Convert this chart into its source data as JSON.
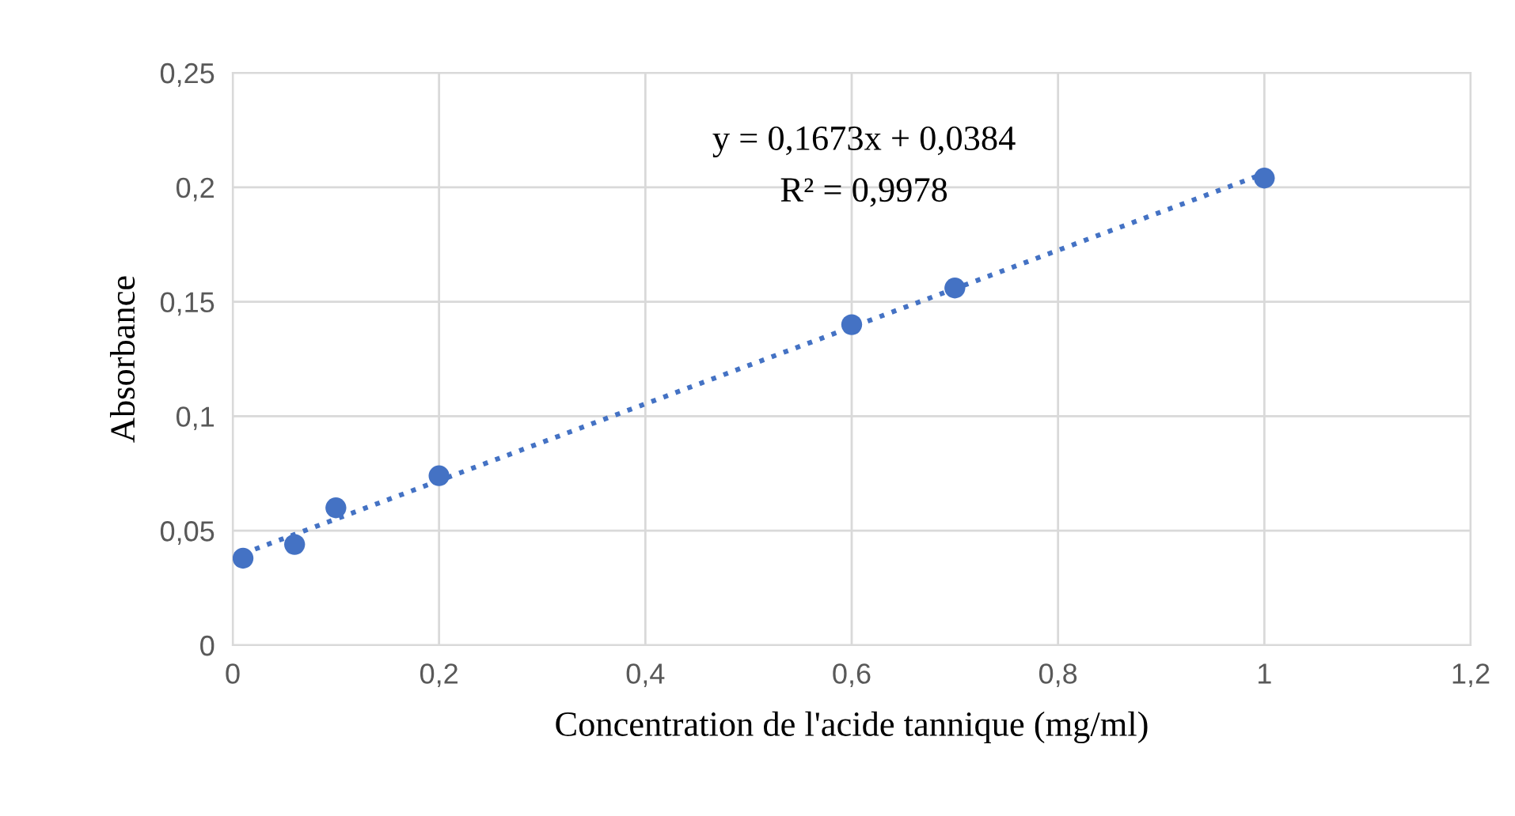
{
  "chart_data": {
    "type": "scatter",
    "xlabel": "Concentration de l'acide tannique (mg/ml)",
    "ylabel": "Absorbance",
    "annotations": [
      "y = 0,1673x + 0,0384",
      "R² = 0,9978"
    ],
    "series": [
      {
        "color": "#4472c4",
        "marker": "circle",
        "x": [
          0.01,
          0.06,
          0.1,
          0.2,
          0.6,
          0.7,
          1.0
        ],
        "values": [
          0.038,
          0.044,
          0.06,
          0.074,
          0.14,
          0.156,
          0.204
        ]
      },
      {
        "type": "line",
        "color": "#4472c4",
        "line_style": "dotted",
        "marker": "none",
        "x": [
          0.01,
          1.0
        ],
        "values": [
          0.04,
          0.206
        ]
      }
    ],
    "xlim": [
      0,
      1.2
    ],
    "ylim": [
      0,
      0.25
    ],
    "xticks": [
      0,
      {
        "value": 0.2,
        "label": "0,2"
      },
      {
        "value": 0.4,
        "label": "0,4"
      },
      {
        "value": 0.6,
        "label": "0,6"
      },
      {
        "value": 0.8,
        "label": "0,8"
      },
      1,
      {
        "value": 1.2,
        "label": "1,2"
      }
    ],
    "yticks": [
      0,
      {
        "value": 0.05,
        "label": "0,05"
      },
      {
        "value": 0.1,
        "label": "0,1"
      },
      {
        "value": 0.15,
        "label": "0,15"
      },
      {
        "value": 0.2,
        "label": "0,2"
      },
      {
        "value": 0.25,
        "label": "0,25"
      }
    ],
    "grid": true,
    "legend": false
  }
}
